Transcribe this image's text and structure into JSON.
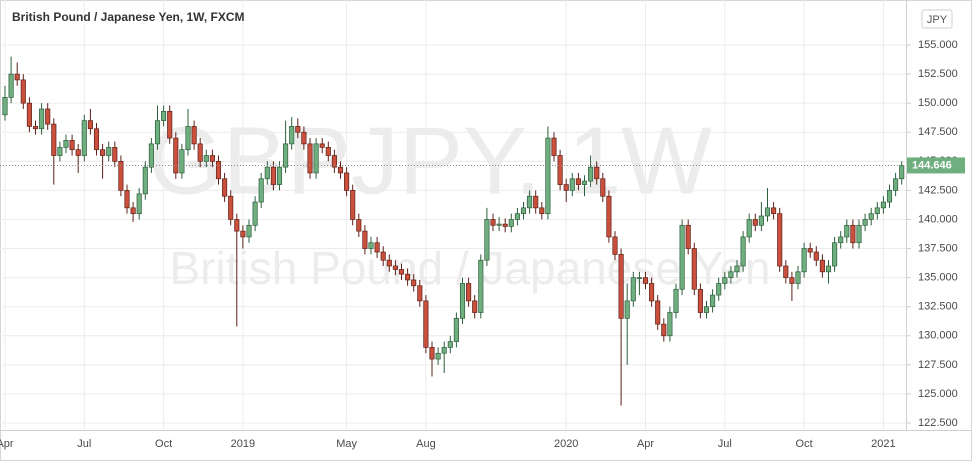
{
  "chart_data": {
    "type": "candlestick",
    "title": "British Pound / Japanese Yen, 1W, FXCM",
    "watermark_symbol": "GBPJPY, 1W",
    "watermark_name": "British Pound / Japanese Yen",
    "currency_badge": "JPY",
    "up_color": "#6fae7e",
    "up_border": "#2d5e3c",
    "down_color": "#c9503d",
    "down_border": "#5e2018",
    "grid": true,
    "ylim": [
      121.9,
      158.87
    ],
    "yticks": [
      {
        "value": 122.5,
        "label": "122.500"
      },
      {
        "value": 125,
        "label": "125.000"
      },
      {
        "value": 127.5,
        "label": "127.500"
      },
      {
        "value": 130,
        "label": "130.000"
      },
      {
        "value": 132.5,
        "label": "132.500"
      },
      {
        "value": 135,
        "label": "135.000"
      },
      {
        "value": 137.5,
        "label": "137.500"
      },
      {
        "value": 140,
        "label": "140.000"
      },
      {
        "value": 142.5,
        "label": "142.500"
      },
      {
        "value": 145,
        "label": "145.000"
      },
      {
        "value": 147.5,
        "label": "147.500"
      },
      {
        "value": 150,
        "label": "150.000"
      },
      {
        "value": 152.5,
        "label": "152.500"
      },
      {
        "value": 155,
        "label": "155.000"
      }
    ],
    "categories": [
      "Apr",
      null,
      null,
      null,
      null,
      null,
      null,
      null,
      null,
      null,
      null,
      null,
      null,
      "Jul",
      null,
      null,
      null,
      null,
      null,
      null,
      null,
      null,
      null,
      null,
      null,
      null,
      "Oct",
      null,
      null,
      null,
      null,
      null,
      null,
      null,
      null,
      null,
      null,
      null,
      null,
      "2019",
      null,
      null,
      null,
      null,
      null,
      null,
      null,
      null,
      null,
      null,
      null,
      null,
      null,
      null,
      null,
      null,
      "May",
      null,
      null,
      null,
      null,
      null,
      null,
      null,
      null,
      null,
      null,
      null,
      null,
      "Aug",
      null,
      null,
      null,
      null,
      null,
      null,
      null,
      null,
      null,
      null,
      null,
      null,
      null,
      null,
      null,
      null,
      null,
      null,
      null,
      null,
      null,
      null,
      "2020",
      null,
      null,
      null,
      null,
      null,
      null,
      null,
      null,
      null,
      null,
      null,
      null,
      "Apr",
      null,
      null,
      null,
      null,
      null,
      null,
      null,
      null,
      null,
      null,
      null,
      null,
      "Jul",
      null,
      null,
      null,
      null,
      null,
      null,
      null,
      null,
      null,
      null,
      null,
      null,
      "Oct",
      null,
      null,
      null,
      null,
      null,
      null,
      null,
      null,
      null,
      null,
      null,
      null,
      "2021",
      null,
      null,
      null,
      null
    ],
    "candles": [
      [
        149,
        151.5,
        148.5,
        150.5
      ],
      [
        150.5,
        154,
        150,
        152.5
      ],
      [
        152.5,
        153.5,
        151.5,
        152
      ],
      [
        152,
        152.5,
        149.5,
        150
      ],
      [
        150,
        150.5,
        147.5,
        148
      ],
      [
        148,
        148.5,
        147.3,
        147.8
      ],
      [
        147.8,
        150,
        147.3,
        149.5
      ],
      [
        149.5,
        150,
        147.7,
        148.2
      ],
      [
        148.2,
        148.7,
        143,
        145.5
      ],
      [
        145.5,
        146.7,
        145,
        146.2
      ],
      [
        146.2,
        147.3,
        145.7,
        146.8
      ],
      [
        146.8,
        147.3,
        145.5,
        146
      ],
      [
        146,
        146.5,
        144,
        145.5
      ],
      [
        145.5,
        149,
        145,
        148.5
      ],
      [
        148.5,
        149.5,
        147.3,
        147.8
      ],
      [
        147.8,
        148.3,
        145.5,
        146
      ],
      [
        146,
        146.5,
        143.5,
        145.5
      ],
      [
        145.5,
        146.7,
        145,
        146.2
      ],
      [
        146.2,
        146.7,
        144.5,
        145
      ],
      [
        145,
        145.5,
        142,
        142.5
      ],
      [
        142.5,
        143,
        140.5,
        141
      ],
      [
        141,
        141.5,
        139.8,
        140.5
      ],
      [
        140.5,
        142.7,
        140,
        142.2
      ],
      [
        142.2,
        145,
        141.7,
        144.5
      ],
      [
        144.5,
        147,
        144,
        146.5
      ],
      [
        146.5,
        149.8,
        146,
        148.5
      ],
      [
        148.5,
        149.8,
        148,
        149.3
      ],
      [
        149.3,
        149.8,
        146.5,
        147
      ],
      [
        147,
        147.5,
        143.5,
        144
      ],
      [
        144,
        146.5,
        143.5,
        146
      ],
      [
        146,
        149.5,
        145.5,
        148
      ],
      [
        148,
        148.5,
        146,
        146.5
      ],
      [
        146.5,
        147,
        144.5,
        145
      ],
      [
        145,
        146,
        144.5,
        145.5
      ],
      [
        145.5,
        146,
        144.5,
        145
      ],
      [
        145,
        145.5,
        143,
        143.5
      ],
      [
        143.5,
        144,
        141.5,
        142
      ],
      [
        142,
        142.5,
        139.5,
        140
      ],
      [
        140,
        140.5,
        130.8,
        139
      ],
      [
        139,
        139.5,
        137.5,
        138.5
      ],
      [
        138.5,
        140,
        138,
        139.5
      ],
      [
        139.5,
        142,
        139,
        141.5
      ],
      [
        141.5,
        144,
        141,
        143.5
      ],
      [
        143.5,
        145,
        143,
        144.5
      ],
      [
        144.5,
        145,
        142.5,
        143
      ],
      [
        143,
        145,
        142.5,
        144.5
      ],
      [
        144.5,
        148.5,
        144,
        146.5
      ],
      [
        146.5,
        148.8,
        146,
        148
      ],
      [
        148,
        148.7,
        147,
        147.5
      ],
      [
        147.5,
        148,
        146,
        146.5
      ],
      [
        146.5,
        147,
        143.5,
        144
      ],
      [
        144,
        147,
        143.5,
        146.5
      ],
      [
        146.5,
        147,
        145.7,
        146.2
      ],
      [
        146.2,
        146.7,
        145,
        145.5
      ],
      [
        145.5,
        146,
        144,
        144.5
      ],
      [
        144.5,
        145,
        143.5,
        144
      ],
      [
        144,
        144.5,
        142,
        142.5
      ],
      [
        142.5,
        143,
        139.5,
        140
      ],
      [
        140,
        140.5,
        138.5,
        139
      ],
      [
        139,
        139.5,
        137,
        137.5
      ],
      [
        137.5,
        138.5,
        137,
        138
      ],
      [
        138,
        138.5,
        136.7,
        137.2
      ],
      [
        137.2,
        137.7,
        136,
        136.5
      ],
      [
        136.5,
        137,
        135.5,
        136
      ],
      [
        136,
        136.5,
        135.2,
        135.7
      ],
      [
        135.7,
        136.2,
        134.8,
        135.3
      ],
      [
        135.3,
        135.8,
        134.3,
        134.8
      ],
      [
        134.8,
        135.3,
        133.8,
        134.3
      ],
      [
        134.3,
        134.8,
        132.5,
        133
      ],
      [
        133,
        133.5,
        128.5,
        129
      ],
      [
        129,
        129.5,
        126.5,
        128
      ],
      [
        128,
        129,
        127.5,
        128.5
      ],
      [
        128.5,
        129.5,
        126.8,
        129
      ],
      [
        129,
        130,
        128.5,
        129.5
      ],
      [
        129.5,
        132,
        129,
        131.5
      ],
      [
        131.5,
        135,
        131,
        134.5
      ],
      [
        134.5,
        135,
        132.5,
        133
      ],
      [
        133,
        133.5,
        131.5,
        132
      ],
      [
        132,
        137,
        131.5,
        136.5
      ],
      [
        136.5,
        141,
        136,
        140
      ],
      [
        140,
        140.5,
        139,
        139.5
      ],
      [
        139.5,
        140.2,
        139,
        139.6
      ],
      [
        139.6,
        140.1,
        138.9,
        139.4
      ],
      [
        139.4,
        140.5,
        138.9,
        140
      ],
      [
        140,
        141,
        139.5,
        140.5
      ],
      [
        140.5,
        141.5,
        140,
        141
      ],
      [
        141,
        142.5,
        140.5,
        142
      ],
      [
        142,
        142.5,
        140.5,
        141
      ],
      [
        141,
        141.5,
        140,
        140.5
      ],
      [
        140.5,
        148,
        140,
        147
      ],
      [
        147,
        147.5,
        145,
        145.5
      ],
      [
        145.5,
        146,
        142.5,
        143
      ],
      [
        143,
        143.5,
        141.5,
        142.5
      ],
      [
        142.5,
        144,
        142,
        143.5
      ],
      [
        143.5,
        144,
        142.5,
        143
      ],
      [
        143,
        143.8,
        142,
        143.3
      ],
      [
        143.3,
        145.5,
        142.8,
        144.5
      ],
      [
        144.5,
        145,
        143,
        143.5
      ],
      [
        143.5,
        144,
        141.5,
        142
      ],
      [
        142,
        142.5,
        138,
        138.5
      ],
      [
        138.5,
        139,
        136.5,
        137
      ],
      [
        137,
        137.5,
        124,
        131.5
      ],
      [
        131.5,
        134.5,
        127.5,
        133
      ],
      [
        133,
        135.5,
        132.5,
        135
      ],
      [
        135,
        135.5,
        133.5,
        135
      ],
      [
        135,
        135.5,
        134,
        134.5
      ],
      [
        134.5,
        135,
        132.5,
        133
      ],
      [
        133,
        133.5,
        130.5,
        131
      ],
      [
        131,
        131.5,
        129.5,
        130
      ],
      [
        130,
        132.5,
        129.5,
        132
      ],
      [
        132,
        134.5,
        131.5,
        134
      ],
      [
        134,
        140,
        133.5,
        139.5
      ],
      [
        139.5,
        140,
        137,
        137.5
      ],
      [
        137.5,
        138,
        133.5,
        134
      ],
      [
        134,
        134.5,
        131.5,
        132
      ],
      [
        132,
        133,
        131.5,
        132.5
      ],
      [
        132.5,
        134,
        132,
        133.5
      ],
      [
        133.5,
        135,
        133,
        134.5
      ],
      [
        134.5,
        135.5,
        134,
        135
      ],
      [
        135,
        136,
        134.5,
        135.5
      ],
      [
        135.5,
        136.5,
        135,
        136
      ],
      [
        136,
        139,
        135.5,
        138.5
      ],
      [
        138.5,
        140.5,
        138,
        140
      ],
      [
        140,
        140.5,
        139,
        139.5
      ],
      [
        139.5,
        141.5,
        139,
        140.3
      ],
      [
        140.3,
        142.7,
        139.8,
        141
      ],
      [
        141,
        141.5,
        140,
        140.5
      ],
      [
        140.5,
        141,
        135.5,
        136
      ],
      [
        136,
        136.5,
        134.5,
        135
      ],
      [
        135,
        135.5,
        133,
        134.5
      ],
      [
        134.5,
        136,
        134,
        135.5
      ],
      [
        135.5,
        138,
        135,
        137.5
      ],
      [
        137.5,
        138,
        136.7,
        137.2
      ],
      [
        137.2,
        137.7,
        136,
        136.5
      ],
      [
        136.5,
        137,
        135,
        135.5
      ],
      [
        135.5,
        136.5,
        134.5,
        136
      ],
      [
        136,
        138.5,
        135.5,
        138
      ],
      [
        138,
        139,
        137.5,
        138.5
      ],
      [
        138.5,
        140,
        138,
        139.5
      ],
      [
        139.5,
        140,
        137.5,
        138
      ],
      [
        138,
        140,
        137.5,
        139.5
      ],
      [
        139.5,
        140.5,
        139,
        140
      ],
      [
        140,
        141,
        139.5,
        140.5
      ],
      [
        140.5,
        141.5,
        140,
        141
      ],
      [
        141,
        142,
        140.5,
        141.5
      ],
      [
        141.5,
        143,
        141,
        142.5
      ],
      [
        142.5,
        144,
        142,
        143.5
      ],
      [
        143.5,
        145,
        143,
        144.646
      ]
    ]
  }
}
